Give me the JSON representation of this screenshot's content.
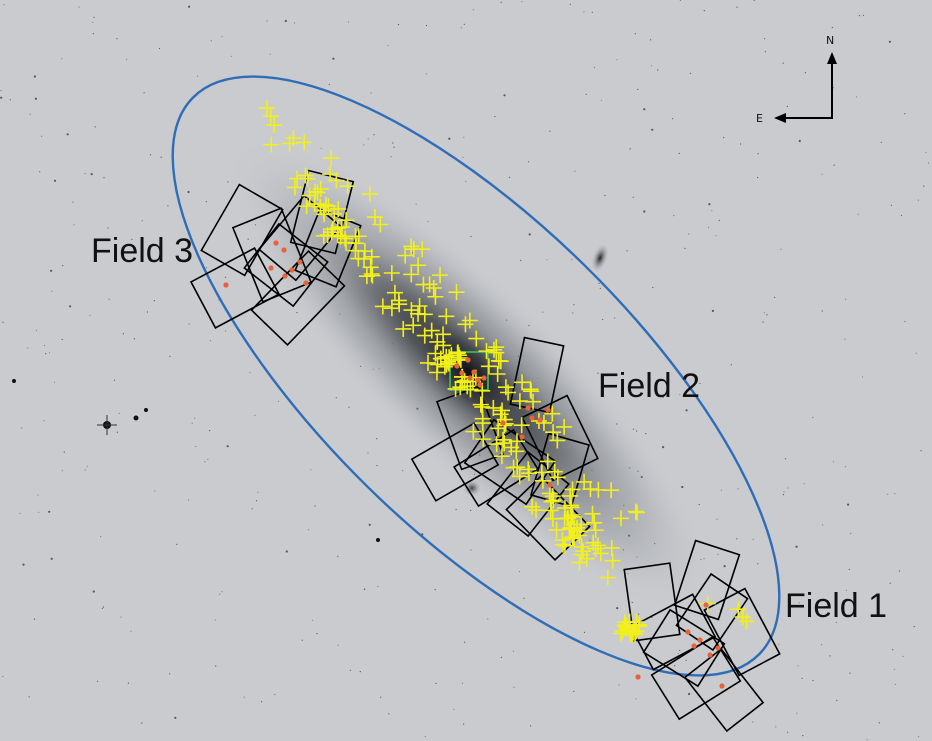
{
  "labels": {
    "field1": "Field 1",
    "field2": "Field 2",
    "field3": "Field 3"
  },
  "compass": {
    "north": "N",
    "east": "E"
  },
  "colors": {
    "background": "#c9cbcf",
    "ellipse": "#2f6db8",
    "cross_marker": "#f2f01a",
    "dot_marker": "#e8633a",
    "pointing_box": "#000000",
    "highlight_box": "#3fbf5f"
  }
}
